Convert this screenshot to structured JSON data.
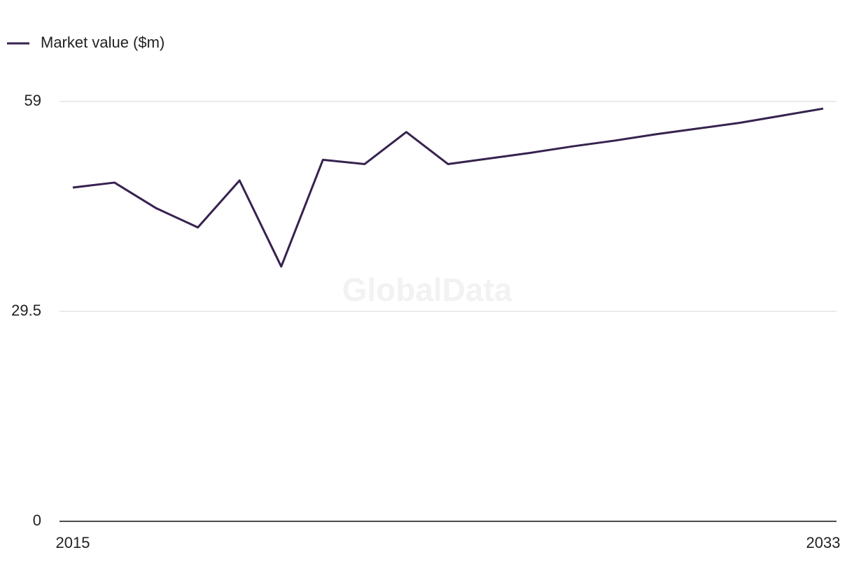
{
  "chart_data": {
    "type": "line",
    "watermark": "GlobalData",
    "x": [
      2015,
      2016,
      2017,
      2018,
      2019,
      2020,
      2021,
      2022,
      2023,
      2024,
      2025,
      2026,
      2027,
      2028,
      2029,
      2030,
      2031,
      2032,
      2033
    ],
    "series": [
      {
        "name": "Market value ($m)",
        "color": "#36224f",
        "values": [
          46.9,
          47.6,
          44.0,
          41.3,
          47.9,
          35.8,
          50.8,
          50.2,
          54.7,
          50.2,
          51.0,
          51.8,
          52.7,
          53.5,
          54.4,
          55.2,
          56.0,
          57.0,
          58.0
        ]
      }
    ],
    "xlim": [
      2015,
      2033
    ],
    "xticks": [
      2015,
      2033
    ],
    "ylim": [
      0,
      59
    ],
    "yticks": [
      0,
      29.5,
      59
    ],
    "grid": true
  }
}
